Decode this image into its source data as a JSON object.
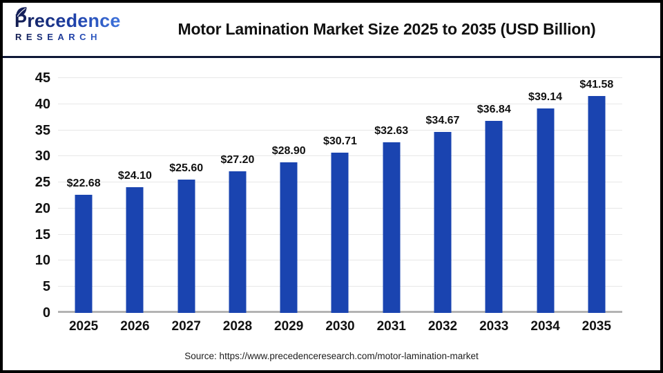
{
  "header": {
    "title": "Motor Lamination Market Size 2025 to 2035 (USD Billion)",
    "logo": {
      "name": "Precedence",
      "sub": "RESEARCH"
    }
  },
  "footer": {
    "source": "Source: https://www.precedenceresearch.com/motor-lamination-market"
  },
  "chart_data": {
    "type": "bar",
    "title": "Motor Lamination Market Size 2025 to 2035 (USD Billion)",
    "categories": [
      "2025",
      "2026",
      "2027",
      "2028",
      "2029",
      "2030",
      "2031",
      "2032",
      "2033",
      "2034",
      "2035"
    ],
    "values": [
      22.68,
      24.1,
      25.6,
      27.2,
      28.9,
      30.71,
      32.63,
      34.67,
      36.84,
      39.14,
      41.58
    ],
    "value_labels": [
      "$22.68",
      "$24.10",
      "$25.60",
      "$27.20",
      "$28.90",
      "$30.71",
      "$32.63",
      "$34.67",
      "$36.84",
      "$39.14",
      "$41.58"
    ],
    "yticks": [
      0,
      5,
      10,
      15,
      20,
      25,
      30,
      35,
      40,
      45
    ],
    "ymax": 45,
    "ylim": [
      0,
      45
    ],
    "xlabel": "",
    "ylabel": "",
    "grid": true,
    "legend_position": "none",
    "bar_color": "#1a44b0",
    "gridline_color": "#e7e7e7",
    "axis_line_color": "#b3b3b3"
  },
  "colors": {
    "frame_border": "#000000",
    "header_divider": "#0e1736",
    "logo_navy": "#121b4d",
    "logo_blue": "#3f74dd",
    "text": "#111111"
  }
}
